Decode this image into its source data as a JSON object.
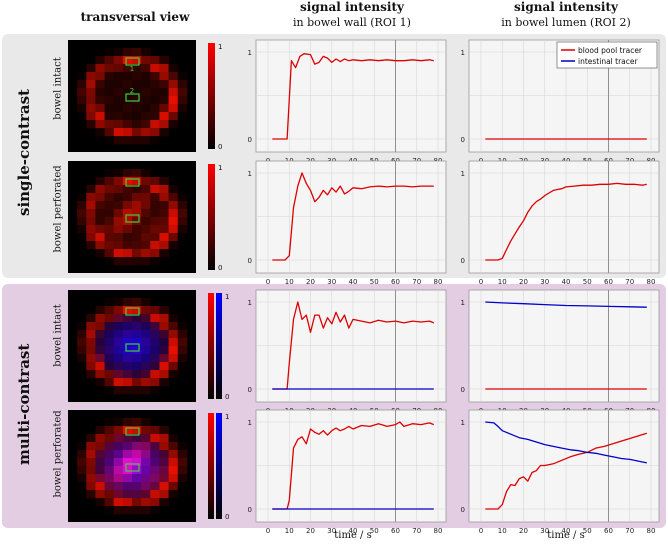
{
  "headers": {
    "col1": "transversal view",
    "col2_title": "signal intensity",
    "col2_sub": "in bowel wall (ROI 1)",
    "col3_title": "signal intensity",
    "col3_sub": "in bowel lumen (ROI 2)"
  },
  "groups": [
    {
      "label": "single-contrast",
      "bg": "#e9e9e9"
    },
    {
      "label": "multi-contrast",
      "bg": "#e3cde3"
    }
  ],
  "row_labels": [
    "bowel intact",
    "bowel perforated",
    "bowel intact",
    "bowel perforated"
  ],
  "roi_labels": [
    "1",
    "2"
  ],
  "colorbar": {
    "max": "1",
    "min": "0"
  },
  "xlabel": "time / s",
  "colors": {
    "red": "#dd0000",
    "blue": "#0000cc",
    "grid": "#d6d6d6",
    "vline": "#888888"
  },
  "chart_data": [
    {
      "type": "line",
      "row": "single-contrast / bowel intact",
      "roi": "bowel wall (ROI 1)",
      "x": [
        0,
        10,
        20,
        30,
        40,
        50,
        60,
        70,
        80
      ],
      "xlim": [
        0,
        80
      ],
      "ylim": [
        0,
        1
      ],
      "yticks": [
        "0",
        "1"
      ],
      "series": [
        {
          "color": "red",
          "x": [
            2,
            9,
            11,
            13,
            15,
            17,
            20,
            22,
            24,
            26,
            28,
            30,
            32,
            34,
            36,
            38,
            40,
            44,
            48,
            52,
            56,
            60,
            64,
            68,
            72,
            76,
            78
          ],
          "y": [
            0,
            0,
            0.9,
            0.82,
            0.95,
            0.98,
            0.97,
            0.86,
            0.88,
            0.95,
            0.93,
            0.88,
            0.92,
            0.89,
            0.92,
            0.9,
            0.91,
            0.9,
            0.91,
            0.9,
            0.91,
            0.9,
            0.9,
            0.91,
            0.9,
            0.91,
            0.9
          ]
        }
      ]
    },
    {
      "type": "line",
      "row": "single-contrast / bowel intact",
      "roi": "bowel lumen (ROI 2)",
      "xlim": [
        0,
        80
      ],
      "ylim": [
        0,
        1
      ],
      "legend": [
        "blood pool tracer",
        "intestinal tracer"
      ],
      "legend_position": "top-right",
      "series": [
        {
          "name": "blood pool tracer",
          "color": "red",
          "x": [
            2,
            78
          ],
          "y": [
            0,
            0
          ]
        }
      ]
    },
    {
      "type": "line",
      "row": "single-contrast / bowel perforated",
      "roi": "bowel wall (ROI 1)",
      "xlim": [
        0,
        80
      ],
      "ylim": [
        0,
        1
      ],
      "series": [
        {
          "color": "red",
          "x": [
            2,
            8,
            10,
            12,
            14,
            16,
            18,
            20,
            22,
            24,
            26,
            28,
            30,
            32,
            34,
            36,
            38,
            40,
            44,
            48,
            52,
            56,
            60,
            64,
            68,
            72,
            76,
            78
          ],
          "y": [
            0,
            0,
            0.05,
            0.6,
            0.85,
            1.0,
            0.88,
            0.8,
            0.67,
            0.72,
            0.8,
            0.75,
            0.83,
            0.78,
            0.85,
            0.76,
            0.79,
            0.83,
            0.82,
            0.84,
            0.85,
            0.84,
            0.85,
            0.85,
            0.84,
            0.85,
            0.85,
            0.85
          ]
        }
      ]
    },
    {
      "type": "line",
      "row": "single-contrast / bowel perforated",
      "roi": "bowel lumen (ROI 2)",
      "xlim": [
        0,
        80
      ],
      "ylim": [
        0,
        1
      ],
      "series": [
        {
          "color": "red",
          "x": [
            2,
            8,
            10,
            12,
            14,
            16,
            18,
            20,
            22,
            24,
            26,
            28,
            30,
            32,
            34,
            36,
            38,
            40,
            44,
            48,
            52,
            56,
            60,
            64,
            68,
            72,
            76,
            78
          ],
          "y": [
            0,
            0,
            0.02,
            0.12,
            0.22,
            0.3,
            0.38,
            0.45,
            0.55,
            0.62,
            0.67,
            0.7,
            0.74,
            0.77,
            0.8,
            0.81,
            0.82,
            0.84,
            0.85,
            0.86,
            0.86,
            0.87,
            0.87,
            0.88,
            0.87,
            0.87,
            0.86,
            0.87
          ]
        }
      ]
    },
    {
      "type": "line",
      "row": "multi-contrast / bowel intact",
      "roi": "bowel wall (ROI 1)",
      "xlim": [
        0,
        80
      ],
      "ylim": [
        0,
        1
      ],
      "series": [
        {
          "color": "red",
          "x": [
            2,
            9,
            10,
            12,
            14,
            16,
            18,
            20,
            22,
            24,
            26,
            28,
            30,
            32,
            34,
            36,
            38,
            40,
            44,
            48,
            52,
            56,
            60,
            64,
            68,
            72,
            76,
            78
          ],
          "y": [
            0,
            0,
            0.3,
            0.8,
            1.0,
            0.8,
            0.85,
            0.65,
            0.85,
            0.85,
            0.7,
            0.82,
            0.75,
            0.88,
            0.77,
            0.85,
            0.7,
            0.8,
            0.78,
            0.76,
            0.79,
            0.77,
            0.78,
            0.76,
            0.78,
            0.77,
            0.78,
            0.76
          ]
        },
        {
          "color": "blue",
          "x": [
            2,
            78
          ],
          "y": [
            0,
            0
          ]
        }
      ]
    },
    {
      "type": "line",
      "row": "multi-contrast / bowel intact",
      "roi": "bowel lumen (ROI 2)",
      "xlim": [
        0,
        80
      ],
      "ylim": [
        0,
        1
      ],
      "series": [
        {
          "color": "red",
          "x": [
            2,
            78
          ],
          "y": [
            0,
            0
          ]
        },
        {
          "color": "blue",
          "x": [
            2,
            10,
            20,
            30,
            40,
            50,
            60,
            70,
            78
          ],
          "y": [
            1.0,
            0.99,
            0.98,
            0.97,
            0.96,
            0.955,
            0.95,
            0.945,
            0.94
          ]
        }
      ]
    },
    {
      "type": "line",
      "row": "multi-contrast / bowel perforated",
      "roi": "bowel wall (ROI 1)",
      "xlim": [
        0,
        80
      ],
      "ylim": [
        0,
        1
      ],
      "series": [
        {
          "color": "red",
          "x": [
            2,
            9,
            10,
            12,
            14,
            16,
            18,
            20,
            22,
            24,
            26,
            28,
            30,
            32,
            34,
            36,
            38,
            40,
            44,
            48,
            52,
            56,
            60,
            62,
            64,
            68,
            72,
            76,
            78
          ],
          "y": [
            0,
            0,
            0.1,
            0.7,
            0.8,
            0.83,
            0.75,
            0.92,
            0.88,
            0.86,
            0.9,
            0.85,
            0.9,
            0.93,
            0.9,
            0.92,
            0.95,
            0.92,
            0.96,
            0.95,
            0.98,
            0.95,
            0.97,
            1.0,
            0.95,
            0.98,
            0.97,
            0.99,
            0.97
          ]
        },
        {
          "color": "blue",
          "x": [
            2,
            78
          ],
          "y": [
            0,
            0
          ]
        }
      ]
    },
    {
      "type": "line",
      "row": "multi-contrast / bowel perforated",
      "roi": "bowel lumen (ROI 2)",
      "xlim": [
        0,
        80
      ],
      "ylim": [
        0,
        1
      ],
      "series": [
        {
          "color": "red",
          "x": [
            2,
            8,
            10,
            12,
            14,
            16,
            18,
            20,
            22,
            24,
            26,
            28,
            30,
            34,
            38,
            42,
            46,
            50,
            54,
            58,
            62,
            66,
            70,
            74,
            78
          ],
          "y": [
            0,
            0,
            0.05,
            0.2,
            0.28,
            0.27,
            0.35,
            0.37,
            0.32,
            0.42,
            0.44,
            0.5,
            0.5,
            0.52,
            0.56,
            0.6,
            0.63,
            0.65,
            0.7,
            0.72,
            0.75,
            0.78,
            0.81,
            0.84,
            0.87
          ]
        },
        {
          "color": "blue",
          "x": [
            2,
            6,
            8,
            10,
            14,
            18,
            22,
            26,
            30,
            34,
            38,
            42,
            46,
            50,
            54,
            58,
            62,
            66,
            70,
            74,
            78
          ],
          "y": [
            1.0,
            0.99,
            0.95,
            0.9,
            0.86,
            0.82,
            0.8,
            0.77,
            0.74,
            0.72,
            0.7,
            0.68,
            0.67,
            0.65,
            0.64,
            0.62,
            0.6,
            0.58,
            0.57,
            0.55,
            0.53
          ]
        }
      ]
    }
  ]
}
